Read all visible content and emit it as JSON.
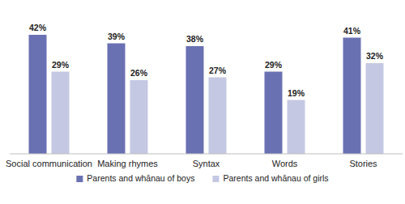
{
  "chart_data": {
    "type": "bar",
    "categories": [
      "Social communication",
      "Making rhymes",
      "Syntax",
      "Words",
      "Stories"
    ],
    "series": [
      {
        "name": "Parents and whānau of boys",
        "color": "#6a71b3",
        "values": [
          42,
          39,
          38,
          29,
          41
        ],
        "value_labels": [
          "42%",
          "39%",
          "38%",
          "29%",
          "41%"
        ]
      },
      {
        "name": "Parents and whānau of girls",
        "color": "#c5c8e3",
        "values": [
          29,
          26,
          27,
          19,
          32
        ],
        "value_labels": [
          "29%",
          "26%",
          "27%",
          "19%",
          "32%"
        ]
      }
    ],
    "ylim": [
      0,
      50
    ],
    "data_labels": true,
    "tick_labels": "x",
    "legend": "bottom",
    "grid": false
  }
}
